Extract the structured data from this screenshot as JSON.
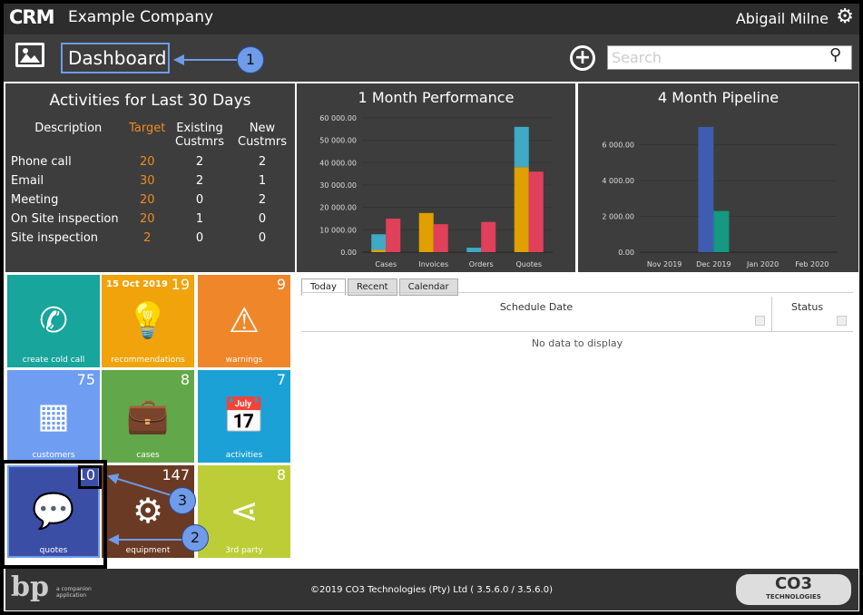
{
  "header": {
    "logo": "CRM",
    "company": "Example Company",
    "user": "Abigail Milne",
    "page_title": "Dashboard",
    "search_placeholder": "Search"
  },
  "activities": {
    "title": "Activities for Last 30 Days",
    "columns": [
      "Description",
      "Target",
      "Existing Custmrs",
      "New Custmrs"
    ],
    "rows": [
      [
        "Phone call",
        "20",
        "2",
        "2"
      ],
      [
        "Email",
        "30",
        "2",
        "1"
      ],
      [
        "Meeting",
        "20",
        "0",
        "2"
      ],
      [
        "On Site inspection",
        "20",
        "1",
        "0"
      ],
      [
        "Site inspection",
        "2",
        "0",
        "0"
      ]
    ]
  },
  "chart_data": [
    {
      "type": "bar",
      "title": "1 Month Performance",
      "categories": [
        "Cases",
        "Invoices",
        "Orders",
        "Quotes"
      ],
      "ylim": [
        0,
        60000
      ],
      "yticks": [
        "0.00",
        "10 000.00",
        "20 000.00",
        "30 000.00",
        "40 000.00",
        "50 000.00",
        "60 000.00"
      ],
      "stacked_series": [
        {
          "color": "#e0a000",
          "values": [
            1000,
            17500,
            0,
            38000
          ]
        },
        {
          "color": "#3fa9c6",
          "values": [
            7000,
            0,
            2000,
            18000
          ]
        }
      ],
      "series": [
        {
          "color": "#e0405a",
          "values": [
            15000,
            12500,
            13500,
            36000
          ]
        }
      ]
    },
    {
      "type": "bar",
      "title": "4 Month Pipeline",
      "categories": [
        "Nov 2019",
        "Dec 2019",
        "Jan 2020",
        "Feb 2020"
      ],
      "ylim": [
        0,
        7500
      ],
      "yticks": [
        "0.00",
        "2 000.00",
        "4 000.00",
        "6 000.00"
      ],
      "series": [
        {
          "color": "#3f5cb0",
          "values": [
            0,
            7000,
            0,
            0
          ]
        },
        {
          "color": "#139a80",
          "values": [
            0,
            2300,
            0,
            0
          ]
        }
      ]
    }
  ],
  "tiles": [
    {
      "label": "create cold call",
      "count": "",
      "date": "",
      "icon": "phone-icon",
      "glyph": "✆",
      "color": "#17a59c"
    },
    {
      "label": "recommendations",
      "count": "19",
      "date": "15 Oct 2019",
      "icon": "lightbulb-icon",
      "glyph": "💡",
      "color": "#f0a30a"
    },
    {
      "label": "warnings",
      "count": "9",
      "date": "",
      "icon": "warning-icon",
      "glyph": "⚠",
      "color": "#f0862a"
    },
    {
      "label": "customers",
      "count": "75",
      "date": "",
      "icon": "building-icon",
      "glyph": "▦",
      "color": "#6f9df2"
    },
    {
      "label": "cases",
      "count": "8",
      "date": "",
      "icon": "briefcase-icon",
      "glyph": "💼",
      "color": "#62a84a"
    },
    {
      "label": "activities",
      "count": "7",
      "date": "",
      "icon": "calendar-icon",
      "glyph": "📅",
      "color": "#1ba1d6"
    },
    {
      "label": "quotes",
      "count": "10",
      "date": "",
      "icon": "chat-bubbles-icon",
      "glyph": "💬",
      "color": "#3b4ea6"
    },
    {
      "label": "equipment",
      "count": "147",
      "date": "",
      "icon": "gears-icon",
      "glyph": "⚙",
      "color": "#6a3a24"
    },
    {
      "label": "3rd party",
      "count": "8",
      "date": "",
      "icon": "share-icon",
      "glyph": "⋖",
      "color": "#bccd38"
    }
  ],
  "schedule": {
    "tabs": [
      "Today",
      "Recent",
      "Calendar"
    ],
    "columns": [
      "Schedule Date",
      "Status"
    ],
    "empty": "No data to display"
  },
  "footer": {
    "copyright": "©2019 CO3 Technologies (Pty) Ltd ( 3.5.6.0 / 3.5.6.0)",
    "bp_logo": "bp",
    "bp_text": "a companion application",
    "co3_logo": "CO3",
    "co3_sub": "TECHNOLOGIES"
  },
  "callouts": [
    "1",
    "2",
    "3"
  ]
}
